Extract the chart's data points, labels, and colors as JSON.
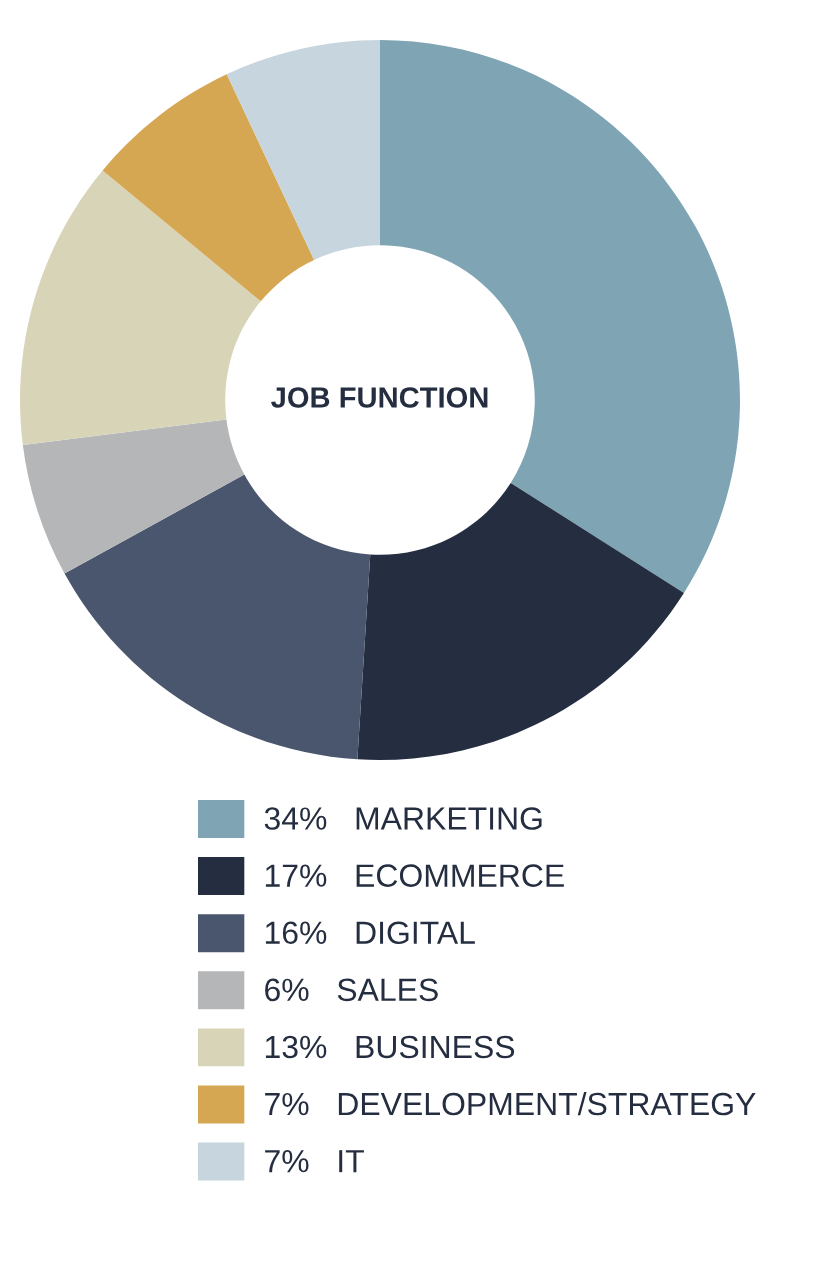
{
  "chart_data": {
    "type": "donut",
    "title": "JOB FUNCTION",
    "categories": [
      "MARKETING",
      "ECOMMERCE",
      "DIGITAL",
      "SALES",
      "BUSINESS",
      "DEVELOPMENT/STRATEGY",
      "IT"
    ],
    "values": [
      34,
      17,
      16,
      6,
      13,
      7,
      7
    ],
    "value_labels": [
      "34%",
      "17%",
      "16%",
      "6%",
      "13%",
      "7%",
      "7%"
    ],
    "colors": [
      "#7fa5b5",
      "#252e40",
      "#4a566e",
      "#b5b6b8",
      "#d8d4b8",
      "#d6a752",
      "#c7d5de"
    ],
    "legend": "bottom"
  }
}
